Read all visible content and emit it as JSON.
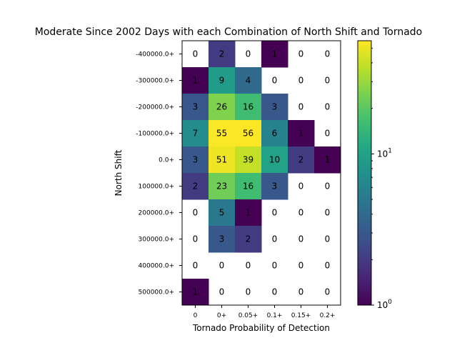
{
  "chart_data": {
    "type": "heatmap",
    "title": "Moderate Since 2002 Days with each Combination of North Shift and Tornado",
    "xlabel": "Tornado Probability of Detection",
    "ylabel": "North Shift",
    "x_categories": [
      "0",
      "0+",
      "0.05+",
      "0.1+",
      "0.15+",
      "0.2+"
    ],
    "y_categories": [
      "-400000.0+",
      "-300000.0+",
      "-200000.0+",
      "-100000.0+",
      "0.0+",
      "100000.0+",
      "200000.0+",
      "300000.0+",
      "400000.0+",
      "500000.0+"
    ],
    "values": [
      [
        0,
        2,
        0,
        1,
        0,
        0
      ],
      [
        1,
        9,
        4,
        0,
        0,
        0
      ],
      [
        3,
        26,
        16,
        3,
        0,
        0
      ],
      [
        7,
        55,
        56,
        6,
        1,
        0
      ],
      [
        3,
        51,
        39,
        10,
        2,
        1
      ],
      [
        2,
        23,
        16,
        3,
        0,
        0
      ],
      [
        0,
        5,
        1,
        0,
        0,
        0
      ],
      [
        0,
        3,
        2,
        0,
        0,
        0
      ],
      [
        0,
        0,
        0,
        0,
        0,
        0
      ],
      [
        1,
        0,
        0,
        0,
        0,
        0
      ]
    ],
    "colorbar": {
      "scale": "log",
      "colormap": "viridis",
      "min": 1,
      "max": 56,
      "tick_labels": [
        {
          "value": 1,
          "label": "10^0"
        },
        {
          "value": 10,
          "label": "10^1"
        }
      ]
    },
    "zero_color": "#ffffff",
    "grid": false
  }
}
